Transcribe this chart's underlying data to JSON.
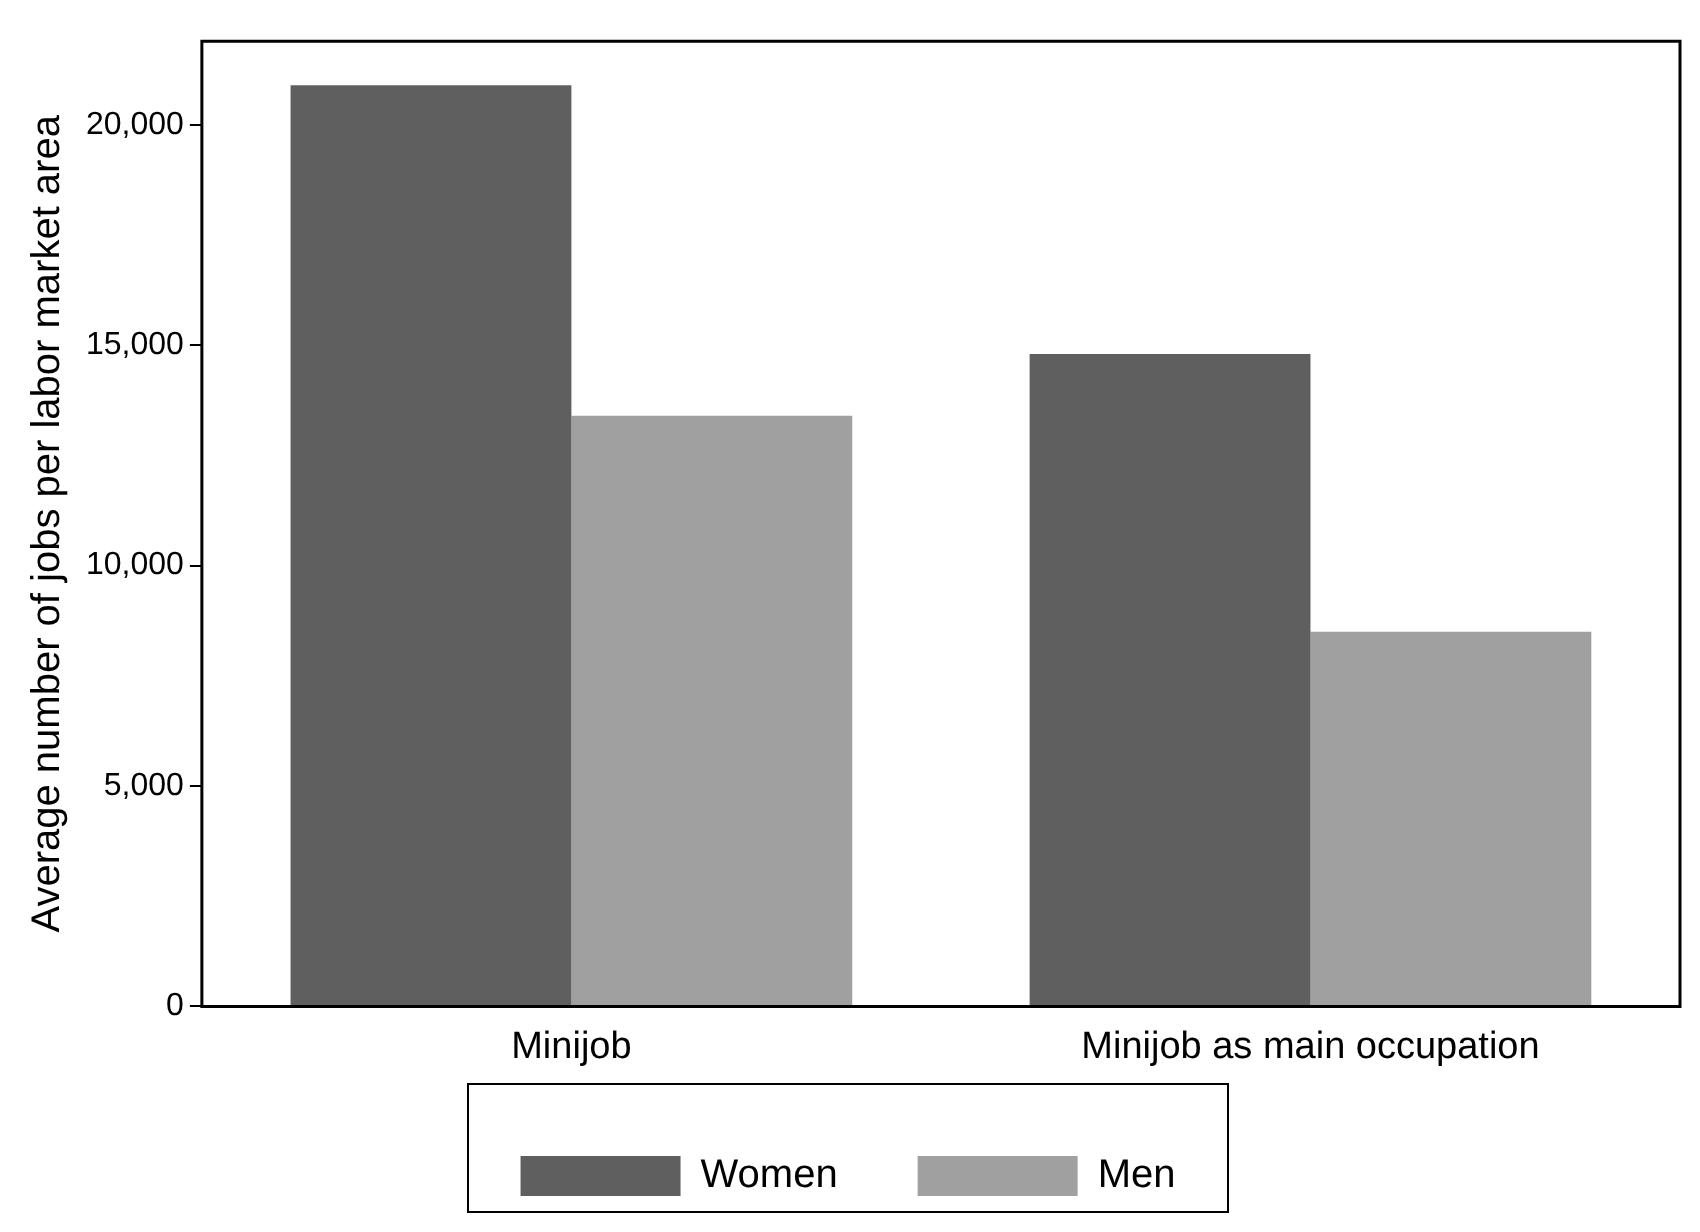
{
  "chart_data": {
    "type": "bar",
    "ylabel": "Average number of jobs per labor market area",
    "categories": [
      "Minijob",
      "Minijob as main occupation"
    ],
    "series": [
      {
        "name": "Women",
        "color": "#5f5f5f",
        "values": [
          20900,
          14800
        ]
      },
      {
        "name": "Men",
        "color": "#a0a0a0",
        "values": [
          13400,
          8500
        ]
      }
    ],
    "ylim": [
      0,
      21900
    ],
    "yticks": [
      {
        "value": 0,
        "label": "0"
      },
      {
        "value": 5000,
        "label": "5,000"
      },
      {
        "value": 10000,
        "label": "10,000"
      },
      {
        "value": 15000,
        "label": "15,000"
      },
      {
        "value": 20000,
        "label": "20,000"
      }
    ],
    "grid": false,
    "legend": "bottom"
  }
}
